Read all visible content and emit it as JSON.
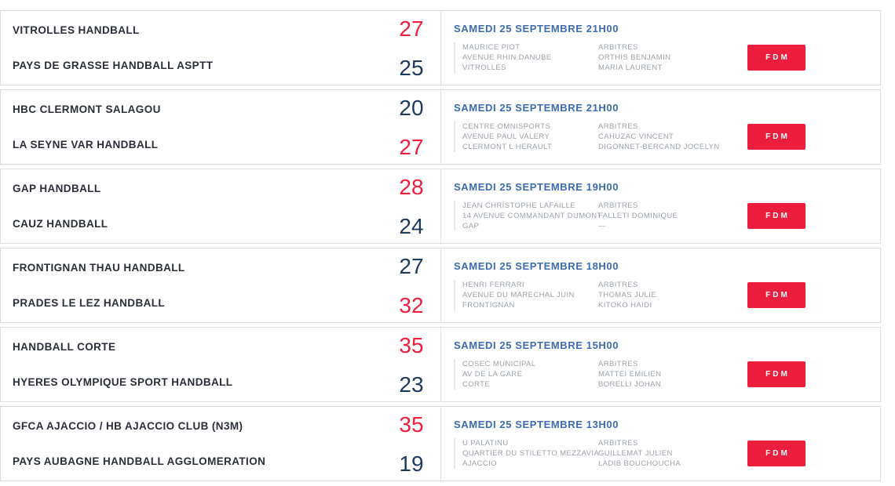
{
  "labels": {
    "arbitres": "ARBITRES",
    "fdm": "FDM"
  },
  "colors": {
    "winner_score_red": "#ed1d3d",
    "loser_score_navy": "#1c3a5e",
    "datetime_blue": "#3b6bb2",
    "muted_gray": "#9aa1a9"
  },
  "matches": [
    {
      "home": "VITROLLES HANDBALL",
      "away": "PAYS DE GRASSE HANDBALL ASPTT",
      "home_score": "27",
      "away_score": "25",
      "datetime": "SAMEDI 25 SEPTEMBRE 21H00",
      "venue_lines": [
        "MAURICE PIOT",
        "AVENUE RHIN DANUBE",
        "VITROLLES"
      ],
      "referees": [
        "ORTHIS BENJAMIN",
        "MARIA LAURENT"
      ]
    },
    {
      "home": "HBC CLERMONT SALAGOU",
      "away": "LA SEYNE VAR HANDBALL",
      "home_score": "20",
      "away_score": "27",
      "datetime": "SAMEDI 25 SEPTEMBRE 21H00",
      "venue_lines": [
        "CENTRE OMNISPORTS",
        "AVENUE PAUL VALERY",
        "CLERMONT L HERAULT"
      ],
      "referees": [
        "CAHUZAC VINCENT",
        "DIGONNET-BERCAND JOCELYN"
      ]
    },
    {
      "home": "GAP HANDBALL",
      "away": "CAUZ HANDBALL",
      "home_score": "28",
      "away_score": "24",
      "datetime": "SAMEDI 25 SEPTEMBRE 19H00",
      "venue_lines": [
        "JEAN CHRISTOPHE LAFAILLE",
        "14 AVENUE COMMANDANT DUMONT",
        "GAP"
      ],
      "referees": [
        "FALLETI DOMINIQUE",
        "—"
      ]
    },
    {
      "home": "FRONTIGNAN THAU HANDBALL",
      "away": "PRADES LE LEZ HANDBALL",
      "home_score": "27",
      "away_score": "32",
      "datetime": "SAMEDI 25 SEPTEMBRE 18H00",
      "venue_lines": [
        "HENRI FERRARI",
        "AVENUE DU MARECHAL JUIN",
        "FRONTIGNAN"
      ],
      "referees": [
        "THOMAS JULIE",
        "KITOKO HAIDI"
      ]
    },
    {
      "home": "HANDBALL CORTE",
      "away": "HYERES OLYMPIQUE SPORT HANDBALL",
      "home_score": "35",
      "away_score": "23",
      "datetime": "SAMEDI 25 SEPTEMBRE 15H00",
      "venue_lines": [
        "COSEC MUNICIPAL",
        "AV DE LA GARE",
        "CORTE"
      ],
      "referees": [
        "MATTEI EMILIEN",
        "BORELLI JOHAN"
      ]
    },
    {
      "home": "GFCA AJACCIO / HB AJACCIO CLUB (N3M)",
      "away": "PAYS AUBAGNE HANDBALL AGGLOMERATION",
      "home_score": "35",
      "away_score": "19",
      "datetime": "SAMEDI 25 SEPTEMBRE 13H00",
      "venue_lines": [
        "U PALATINU",
        "QUARTIER DU STILETTO MEZZAVIA",
        "AJACCIO"
      ],
      "referees": [
        "GUILLEMAT JULIEN",
        "LADIB BOUCHOUCHA"
      ]
    }
  ]
}
